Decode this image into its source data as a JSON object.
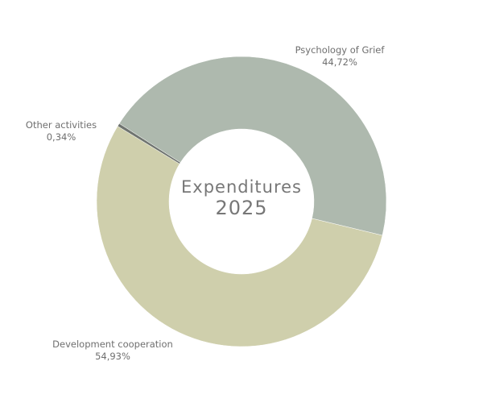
{
  "chart_data": {
    "type": "pie",
    "subtype": "donut",
    "title": "Expenditures",
    "subtitle": "2025",
    "slices": [
      {
        "label": "Psychology of Grief",
        "value": 44.72,
        "value_label": "44,72%",
        "color": "#aeb9ae"
      },
      {
        "label": "Development cooperation",
        "value": 54.93,
        "value_label": "54,93%",
        "color": "#cfcfac"
      },
      {
        "label": "Other activities",
        "value": 0.34,
        "value_label": "0,34%",
        "color": "#6f746f"
      }
    ],
    "legend": "none"
  }
}
